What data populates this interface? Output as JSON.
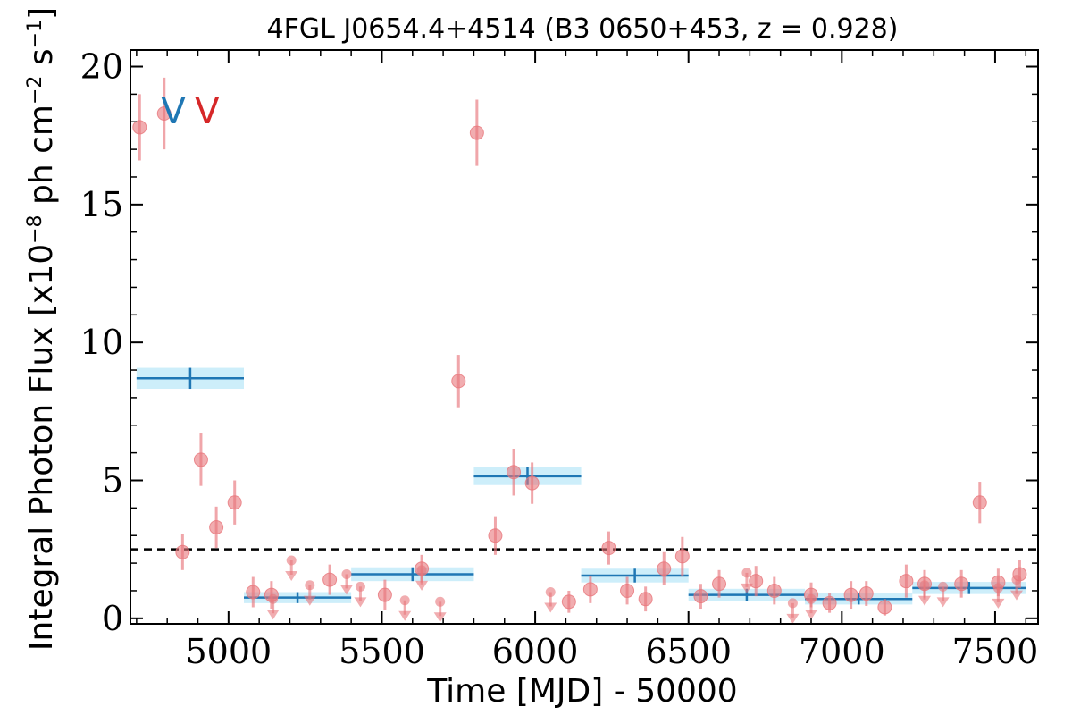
{
  "chart_data": {
    "type": "scatter",
    "title": "4FGL J0654.4+4514 (B3 0650+453, z = 0.928)",
    "xlabel": "Time [MJD] - 50000",
    "ylabel": "Integral Photon Flux [x10^-8 ph cm^-2 s^-1]",
    "ylabel_parts": {
      "base": "Integral Photon Flux [x10",
      "exp1": "−8",
      "mid": " ph cm",
      "exp2": "−2",
      "mid2": " s",
      "exp3": "−1",
      "end": "]"
    },
    "xlim": [
      4680,
      7640
    ],
    "ylim": [
      -0.2,
      20.6
    ],
    "xticks": [
      5000,
      5500,
      6000,
      6500,
      7000,
      7500
    ],
    "yticks": [
      0,
      5,
      10,
      15,
      20
    ],
    "threshold_line": 2.5,
    "markers": [
      {
        "label": "V",
        "color": "#1f77b4",
        "x": 4820,
        "y": 18.4
      },
      {
        "label": "V",
        "color": "#d62728",
        "x": 4930,
        "y": 18.4
      }
    ],
    "series": [
      {
        "name": "",
        "kind": "points",
        "color": "#e8777c",
        "x": [
          4710,
          4790,
          4850,
          4910,
          4960,
          5020,
          5810,
          5750,
          5870,
          5930,
          5990,
          6240,
          6480,
          7450,
          5080,
          5140,
          5330,
          5510,
          5630,
          6180,
          6110,
          6300,
          6360,
          6420,
          6540,
          6600,
          6720,
          6780,
          6900,
          6960,
          7030,
          7080,
          7140,
          7210,
          7270,
          7390,
          7510,
          7580
        ],
        "y": [
          17.8,
          18.3,
          2.4,
          5.75,
          3.3,
          4.2,
          17.6,
          8.6,
          3.0,
          5.3,
          4.9,
          2.55,
          2.25,
          4.2,
          0.95,
          0.85,
          1.4,
          0.85,
          1.8,
          1.05,
          0.6,
          1.0,
          0.7,
          1.8,
          0.8,
          1.25,
          1.35,
          1.0,
          0.85,
          0.55,
          0.85,
          0.9,
          0.4,
          1.35,
          1.25,
          1.25,
          1.3,
          1.6
        ],
        "yerr": [
          1.2,
          1.3,
          0.65,
          0.95,
          0.75,
          0.8,
          1.2,
          0.95,
          0.7,
          0.85,
          0.75,
          0.6,
          0.7,
          0.75,
          0.55,
          0.5,
          0.55,
          0.55,
          0.5,
          0.5,
          0.4,
          0.5,
          0.45,
          0.6,
          0.45,
          0.5,
          0.55,
          0.5,
          0.45,
          0.35,
          0.5,
          0.45,
          0.3,
          0.6,
          0.5,
          0.5,
          0.5,
          0.5
        ]
      },
      {
        "name": "",
        "kind": "upper_limits",
        "color": "#e8777c",
        "x": [
          5145,
          5205,
          5265,
          5385,
          5430,
          5575,
          5630,
          5690,
          6050,
          6690,
          6840,
          6900,
          7270,
          7330,
          7510,
          7570
        ],
        "y": [
          0.7,
          2.1,
          1.2,
          1.6,
          1.15,
          0.65,
          1.75,
          0.6,
          0.95,
          1.65,
          0.55,
          0.7,
          1.2,
          1.15,
          1.1,
          1.4
        ]
      },
      {
        "name": "",
        "kind": "bins",
        "color": "#1f77b4",
        "band_color": "#cdeefa",
        "x0": [
          4700,
          5050,
          5400,
          5800,
          6150,
          6500,
          6880,
          7230
        ],
        "x1": [
          5050,
          5400,
          5800,
          6150,
          6500,
          6880,
          7230,
          7600
        ],
        "y": [
          8.7,
          0.75,
          1.6,
          5.15,
          1.55,
          0.85,
          0.7,
          1.1
        ],
        "band": [
          0.38,
          0.2,
          0.25,
          0.32,
          0.25,
          0.22,
          0.2,
          0.22
        ]
      }
    ]
  }
}
